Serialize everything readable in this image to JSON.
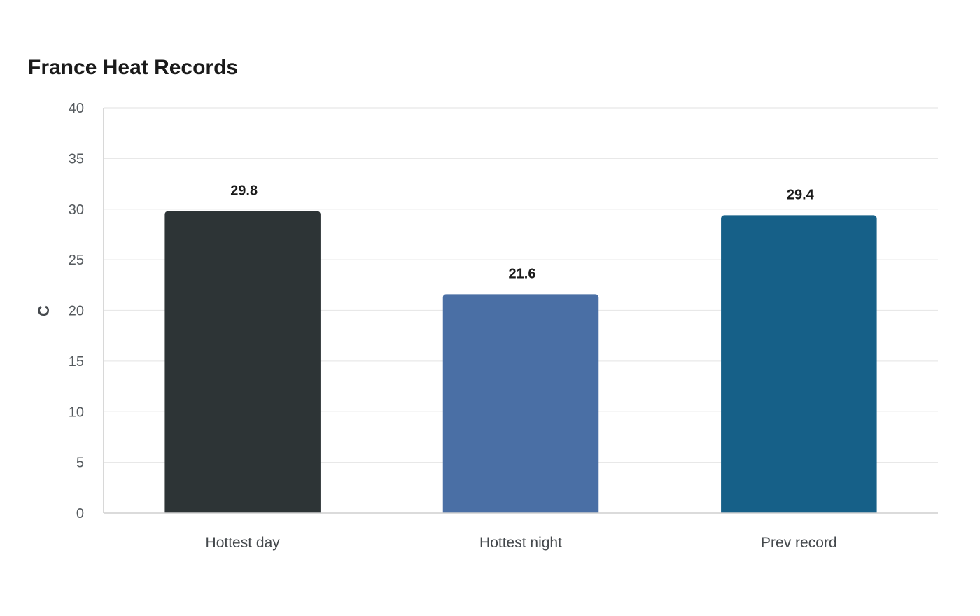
{
  "chart_data": {
    "type": "bar",
    "title": "France Heat Records",
    "ylabel": "C",
    "xlabel": "",
    "categories": [
      "Hottest day",
      "Hottest night",
      "Prev record"
    ],
    "values": [
      29.8,
      21.6,
      29.4
    ],
    "data_labels": [
      "29.8",
      "21.6",
      "29.4"
    ],
    "colors": [
      "#2d3436",
      "#4a6fa5",
      "#166088"
    ],
    "ylim": [
      0,
      40
    ],
    "yticks": [
      0,
      5,
      10,
      15,
      20,
      25,
      30,
      35,
      40
    ],
    "grid": true,
    "legend": "none"
  }
}
